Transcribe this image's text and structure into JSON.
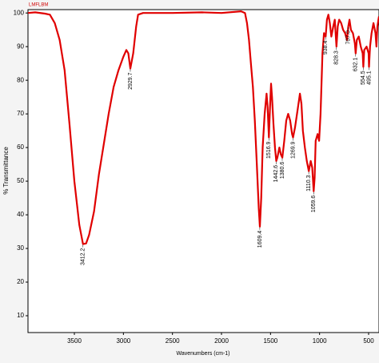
{
  "chart_data": {
    "type": "line",
    "title": "LMFLBM",
    "xlabel": "Wavenumbers (cm-1)",
    "ylabel": "% Transmittance",
    "xlim": [
      3973,
      394
    ],
    "ylim": [
      5,
      101
    ],
    "xticks": [
      3500,
      3000,
      2500,
      2000,
      1500,
      1000,
      500
    ],
    "yticks": [
      10,
      20,
      30,
      40,
      50,
      60,
      70,
      80,
      90,
      100
    ],
    "color": "#e00000",
    "x": [
      3973,
      3900,
      3800,
      3750,
      3700,
      3650,
      3600,
      3550,
      3500,
      3450,
      3412,
      3380,
      3350,
      3300,
      3250,
      3200,
      3150,
      3100,
      3050,
      3000,
      2970,
      2950,
      2929.7,
      2900,
      2870,
      2850,
      2800,
      2500,
      2200,
      2000,
      1800,
      1760,
      1740,
      1720,
      1700,
      1680,
      1660,
      1640,
      1620,
      1609,
      1595,
      1580,
      1560,
      1540,
      1530,
      1516.9,
      1505,
      1495,
      1485,
      1470,
      1455,
      1442,
      1430,
      1410,
      1395,
      1380,
      1360,
      1340,
      1320,
      1300,
      1280,
      1270,
      1250,
      1220,
      1200,
      1185,
      1170,
      1150,
      1130,
      1110,
      1090,
      1075,
      1060,
      1050,
      1040,
      1020,
      1005,
      990,
      970,
      955,
      938,
      925,
      910,
      895,
      880,
      860,
      845,
      828,
      815,
      800,
      780,
      760,
      740,
      720,
      707,
      695,
      680,
      660,
      640,
      632,
      620,
      600,
      580,
      560,
      554,
      545,
      520,
      500,
      496,
      485,
      470,
      450,
      430,
      420,
      410,
      400,
      394
    ],
    "y": [
      100,
      100.2,
      99.8,
      99.5,
      97,
      92,
      83,
      67,
      50,
      37,
      31.3,
      31.5,
      34,
      41,
      52,
      61,
      70,
      78,
      83,
      87,
      89,
      88,
      83.5,
      88,
      96,
      99.5,
      100,
      100,
      100.2,
      100,
      100.5,
      100,
      97,
      92,
      85,
      78,
      68,
      55,
      42,
      36.5,
      45,
      60,
      70,
      76,
      72,
      63,
      72,
      79,
      75,
      67,
      60,
      56,
      57,
      60,
      58,
      57,
      62,
      68,
      70,
      68,
      64,
      63,
      66,
      72,
      76,
      73,
      65,
      60,
      56,
      53,
      56,
      54,
      47,
      51,
      62,
      64,
      62,
      70,
      88,
      94,
      93,
      98,
      99.5,
      97,
      93,
      96,
      98,
      90,
      96,
      98,
      97,
      95,
      94,
      92,
      96,
      98,
      95,
      94,
      91,
      88,
      92,
      93,
      90,
      88,
      84,
      89,
      90,
      88,
      84,
      90,
      94,
      97,
      94,
      90,
      96,
      98,
      99
    ],
    "peaks": {
      "x": [
        3412.2,
        2929.7,
        1609.4,
        1516.9,
        1442.6,
        1380.6,
        1269.9,
        1110.3,
        1059.6,
        938.4,
        828.3,
        707.0,
        632.1,
        554.5,
        495.1
      ],
      "y": [
        31.3,
        83.5,
        36.5,
        63,
        56,
        57,
        63,
        53,
        47,
        93,
        90,
        96,
        88,
        84,
        84
      ],
      "labels": [
        "3412.2",
        "2929.7",
        "1609.4",
        "1516.9",
        "1442.6",
        "1380.6",
        "1269.9",
        "1110.3",
        "1059.6",
        "938.4",
        "828.3",
        "707.0",
        "632.1",
        "554.5",
        "495.1"
      ]
    }
  }
}
